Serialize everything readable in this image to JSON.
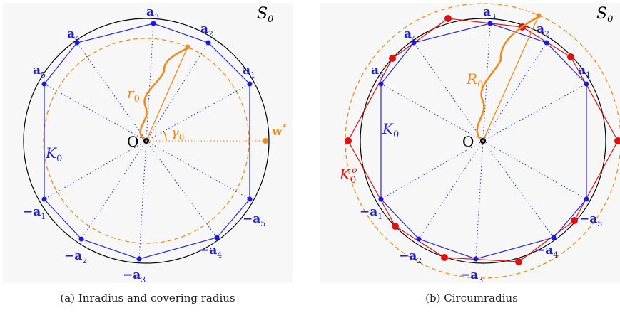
{
  "panel_a": {
    "set_label": {
      "script": "S",
      "sub": "0"
    },
    "origin_label": "O",
    "vertex_labels": [
      {
        "prefix": "",
        "letter": "a",
        "sub": "3"
      },
      {
        "prefix": "",
        "letter": "a",
        "sub": "2"
      },
      {
        "prefix": "",
        "letter": "a",
        "sub": "1"
      },
      {
        "prefix": "",
        "letter": "a",
        "sub": "4"
      },
      {
        "prefix": "",
        "letter": "a",
        "sub": "5"
      },
      {
        "prefix": "−",
        "letter": "a",
        "sub": "1"
      },
      {
        "prefix": "−",
        "letter": "a",
        "sub": "5"
      },
      {
        "prefix": "−",
        "letter": "a",
        "sub": "2"
      },
      {
        "prefix": "−",
        "letter": "a",
        "sub": "4"
      },
      {
        "prefix": "−",
        "letter": "a",
        "sub": "3"
      }
    ],
    "body_label": {
      "script": "K",
      "sub": "0"
    },
    "inradius_label": {
      "letter": "r",
      "sub": "0"
    },
    "angle_label": {
      "letter": "γ",
      "sub": "0"
    },
    "point_label": {
      "letter": "w",
      "sup": "*"
    },
    "caption": "(a) Inradius and covering radius"
  },
  "panel_b": {
    "set_label": {
      "script": "S",
      "sub": "0"
    },
    "origin_label": "O",
    "vertex_labels": [
      {
        "prefix": "",
        "letter": "a",
        "sub": "3"
      },
      {
        "prefix": "",
        "letter": "a",
        "sub": "2"
      },
      {
        "prefix": "",
        "letter": "a",
        "sub": "1"
      },
      {
        "prefix": "",
        "letter": "a",
        "sub": "4"
      },
      {
        "prefix": "",
        "letter": "a",
        "sub": "5"
      },
      {
        "prefix": "−",
        "letter": "a",
        "sub": "1"
      },
      {
        "prefix": "−",
        "letter": "a",
        "sub": "5"
      },
      {
        "prefix": "−",
        "letter": "a",
        "sub": "2"
      },
      {
        "prefix": "−",
        "letter": "a",
        "sub": "4"
      },
      {
        "prefix": "−",
        "letter": "a",
        "sub": "3"
      }
    ],
    "body_label": {
      "script": "K",
      "sub": "0"
    },
    "polar_label": {
      "script": "K",
      "sub": "0",
      "sup": "o"
    },
    "circumradius_label": {
      "letter": "R",
      "sub": "0"
    },
    "caption": "(b) Circumradius"
  },
  "colors": {
    "polygon": "#2a2ad0",
    "vertex_dot": "#1a1ae0",
    "annotation": "#f08c1e",
    "polar": "#e01010",
    "circle": "#000000",
    "panel_bg": "#f7f7f7"
  }
}
